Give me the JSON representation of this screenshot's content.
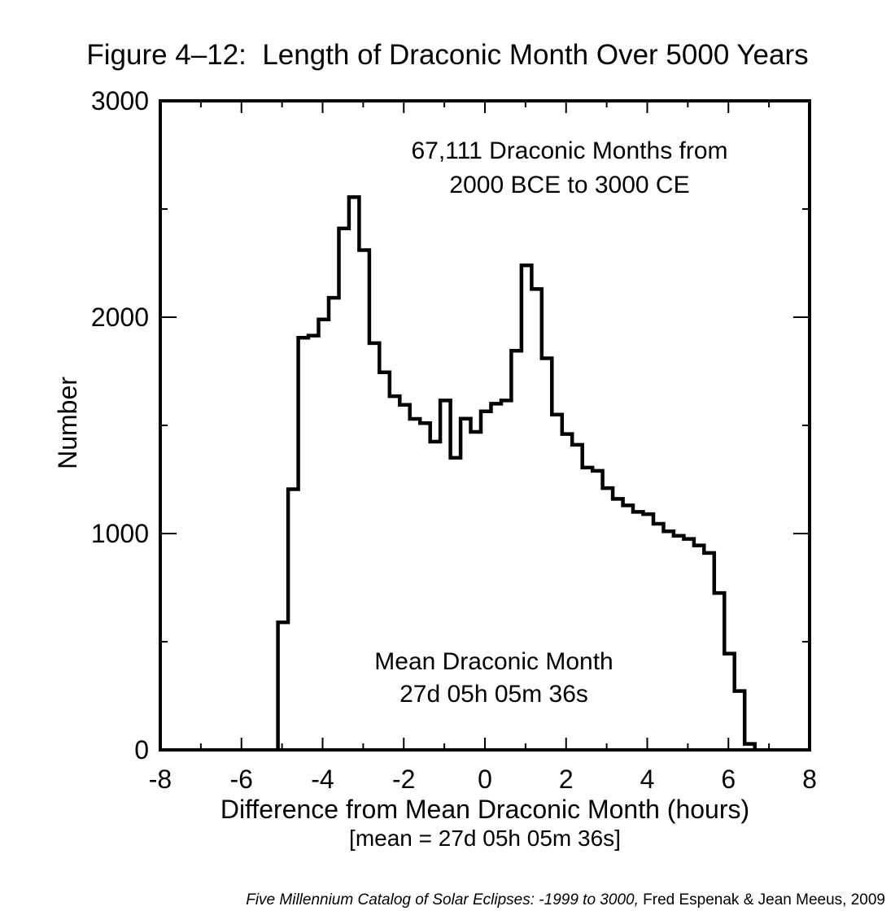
{
  "figure": {
    "title": "Figure 4–12:  Length of Draconic Month Over 5000 Years",
    "source": {
      "title_italic": "Five Millennium Catalog of Solar Eclipses: -1999 to 3000,",
      "authors": "Fred Espenak & Jean Meeus, 2009"
    }
  },
  "chart_data": {
    "type": "bar",
    "subtype": "step-outline-histogram",
    "title": "Figure 4–12:  Length of Draconic Month Over 5000 Years",
    "xlabel": "Difference from Mean Draconic Month (hours)",
    "xlabel_note": "[mean = 27d 05h 05m 36s]",
    "ylabel": "Number",
    "xlim": [
      -8,
      8
    ],
    "ylim": [
      0,
      3000
    ],
    "x_major_ticks": [
      -8,
      -6,
      -4,
      -2,
      0,
      2,
      4,
      6,
      8
    ],
    "x_minor_ticks": [
      -7,
      -5,
      -3,
      -1,
      1,
      3,
      5,
      7
    ],
    "y_major_ticks": [
      0,
      1000,
      2000,
      3000
    ],
    "y_minor_ticks": [
      500,
      1500,
      2500
    ],
    "grid": false,
    "legend": false,
    "line_color": "#000000",
    "background_color": "#ffffff",
    "total_months": 67111,
    "bin_start_hours": -5.1,
    "bin_width_hours": 0.25,
    "counts": [
      590,
      1205,
      1905,
      1915,
      1990,
      2090,
      2410,
      2555,
      2310,
      1880,
      1745,
      1635,
      1595,
      1530,
      1510,
      1425,
      1615,
      1350,
      1531,
      1470,
      1565,
      1600,
      1615,
      1845,
      2240,
      2130,
      1810,
      1550,
      1460,
      1410,
      1305,
      1290,
      1210,
      1160,
      1130,
      1100,
      1090,
      1045,
      1010,
      990,
      975,
      945,
      910,
      725,
      445,
      272,
      28
    ],
    "annotations": [
      {
        "id": "total-months",
        "lines": [
          "67,111 Draconic Months from",
          "2000 BCE to 3000 CE"
        ]
      },
      {
        "id": "mean-month",
        "lines": [
          "Mean Draconic Month",
          "27d 05h 05m 36s"
        ]
      }
    ]
  }
}
